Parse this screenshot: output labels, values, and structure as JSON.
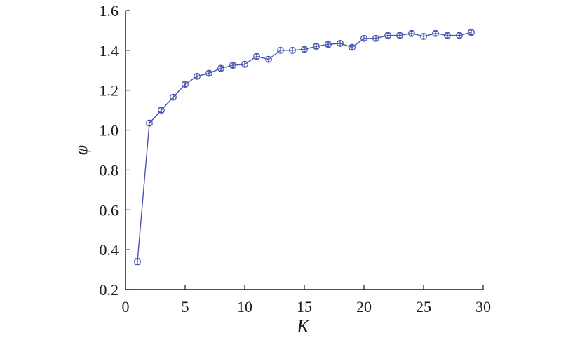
{
  "chart_data": {
    "type": "line",
    "title": "",
    "xlabel": "K",
    "ylabel": "φ",
    "xlim": [
      0,
      30
    ],
    "ylim": [
      0.2,
      1.6
    ],
    "xticks": [
      0,
      5,
      10,
      15,
      20,
      25,
      30
    ],
    "xtick_labels": [
      "0",
      "5",
      "10",
      "15",
      "20",
      "25",
      "30"
    ],
    "yticks": [
      0.2,
      0.4,
      0.6,
      0.8,
      1.0,
      1.2,
      1.4,
      1.6
    ],
    "ytick_labels": [
      "0.2",
      "0.4",
      "0.6",
      "0.8",
      "1.0",
      "1.2",
      "1.4",
      "1.6"
    ],
    "grid": false,
    "legend": "none",
    "color": "#4a55b0",
    "series": [
      {
        "x": [
          1,
          2,
          3,
          4,
          5,
          6,
          7,
          8,
          9,
          10,
          11,
          12,
          13,
          14,
          15,
          16,
          17,
          18,
          19,
          20,
          21,
          22,
          23,
          24,
          25,
          26,
          27,
          28,
          29
        ],
        "values": [
          0.34,
          1.035,
          1.1,
          1.165,
          1.23,
          1.27,
          1.285,
          1.31,
          1.325,
          1.33,
          1.37,
          1.355,
          1.4,
          1.4,
          1.405,
          1.42,
          1.43,
          1.435,
          1.415,
          1.46,
          1.46,
          1.475,
          1.475,
          1.485,
          1.47,
          1.485,
          1.475,
          1.475,
          1.49
        ],
        "errors": [
          0.015,
          0.012,
          0.012,
          0.012,
          0.012,
          0.012,
          0.012,
          0.012,
          0.012,
          0.012,
          0.012,
          0.012,
          0.012,
          0.012,
          0.012,
          0.012,
          0.012,
          0.012,
          0.012,
          0.012,
          0.012,
          0.012,
          0.012,
          0.012,
          0.012,
          0.012,
          0.012,
          0.012,
          0.012
        ]
      }
    ]
  }
}
